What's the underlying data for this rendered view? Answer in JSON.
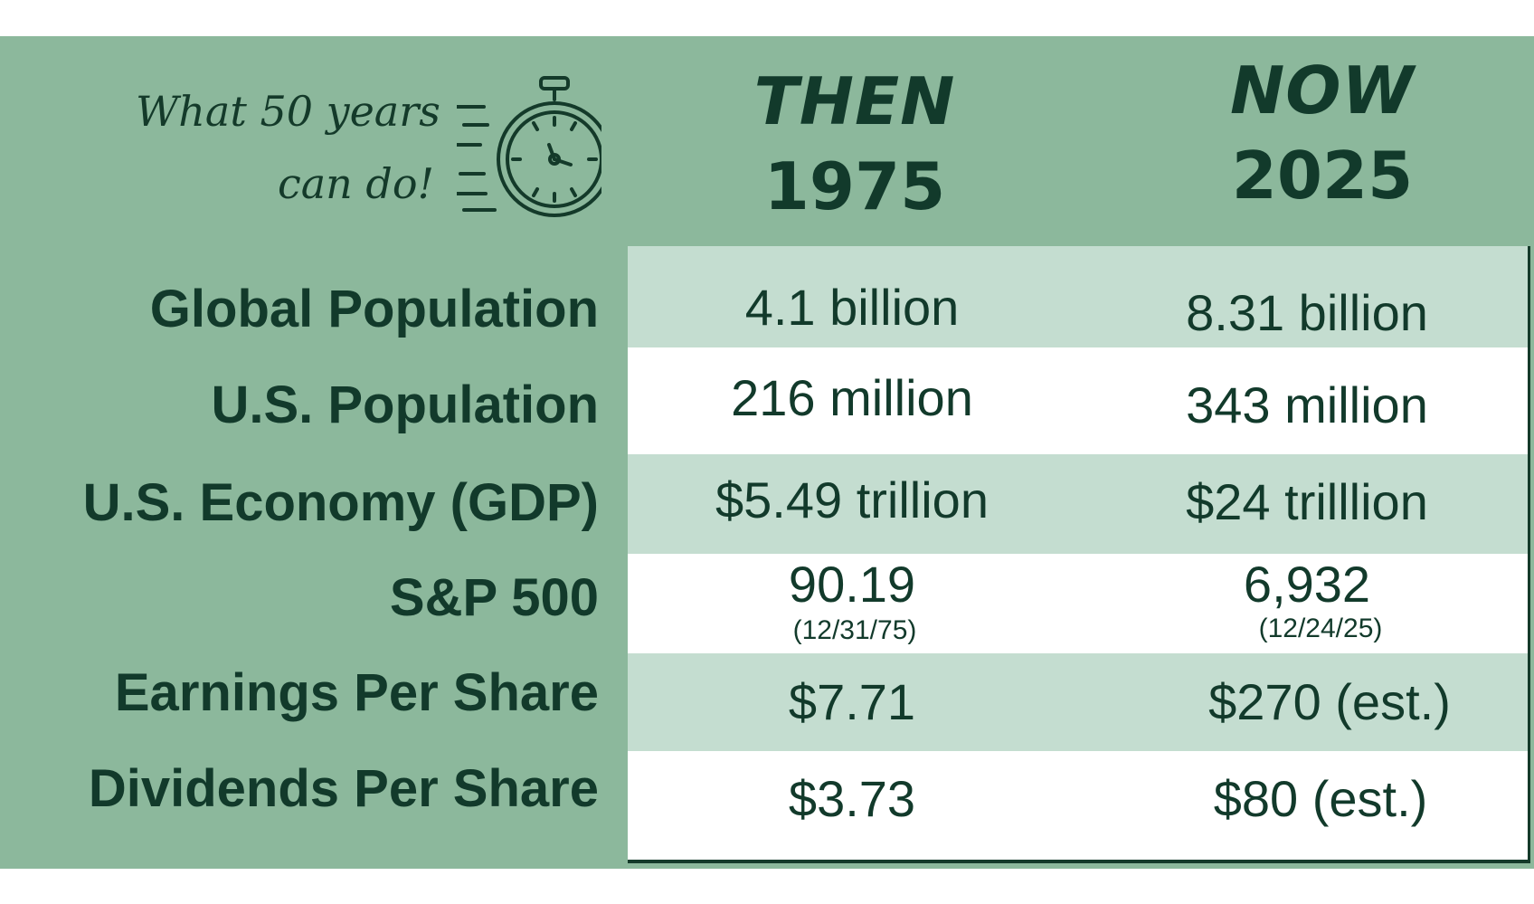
{
  "header": {
    "tagline_line1": "What 50 years",
    "tagline_line2": "can do!",
    "then_word": "THEN",
    "then_year": "1975",
    "now_word": "NOW",
    "now_year": "2025"
  },
  "rows": [
    {
      "label": "Global Population",
      "then": "4.1 billion",
      "now": "8.31 billion"
    },
    {
      "label": "U.S. Population",
      "then": "216 million",
      "now": "343 million"
    },
    {
      "label": "U.S. Economy (GDP)",
      "then": "$5.49 trillion",
      "now": "$24 trilllion"
    },
    {
      "label": "S&P 500",
      "then": "90.19",
      "then_note": "(12/31/75)",
      "now": "6,932",
      "now_note": "(12/24/25)"
    },
    {
      "label": "Earnings Per Share",
      "then": "$7.71",
      "now": "$270 (est.)"
    },
    {
      "label": "Dividends Per Share",
      "then": "$3.73",
      "now": "$80 (est.)"
    }
  ],
  "colors": {
    "panel_green": "#8cb89c",
    "row_shade": "#c4ddd0",
    "text_dark_green": "#123a2b"
  },
  "icons": [
    "stopwatch-icon"
  ]
}
